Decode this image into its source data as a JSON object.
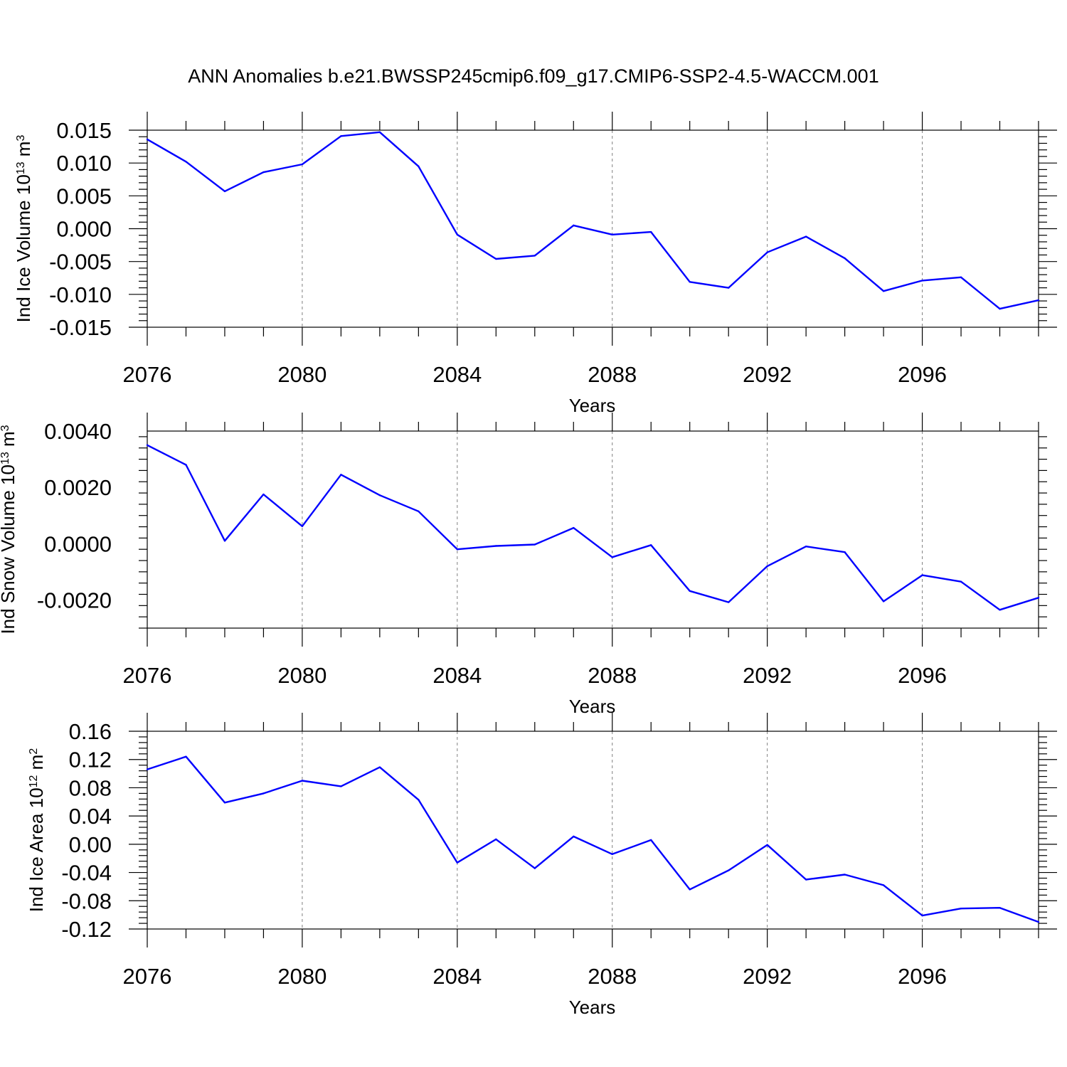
{
  "title": "ANN Anomalies b.e21.BWSSP245cmip6.f09_g17.CMIP6-SSP2-4.5-WACCM.001",
  "colors": {
    "line": "#0000ff",
    "axis": "#000000",
    "grid": "#808080"
  },
  "chart_data": [
    {
      "type": "line",
      "name": "ice-volume",
      "ylabel": {
        "main": "Ind Ice Volume 10",
        "sup": "13",
        "unit": " m",
        "unit_sup": "3"
      },
      "xlabel": "Years",
      "xlim": [
        2076,
        2099
      ],
      "ylim": [
        -0.015,
        0.015
      ],
      "yticks": [
        0.015,
        0.01,
        0.005,
        0.0,
        -0.005,
        -0.01,
        -0.015
      ],
      "ytick_labels": [
        "0.015",
        "0.010",
        "0.005",
        "0.000",
        "-0.005",
        "-0.010",
        "-0.015"
      ],
      "xticks": [
        2076,
        2080,
        2084,
        2088,
        2092,
        2096
      ],
      "xtick_labels": [
        "2076",
        "2080",
        "2084",
        "2088",
        "2092",
        "2096"
      ],
      "grid": "vertical-dashed",
      "x": [
        2076,
        2077,
        2078,
        2079,
        2080,
        2081,
        2082,
        2083,
        2084,
        2085,
        2086,
        2087,
        2088,
        2089,
        2090,
        2091,
        2092,
        2093,
        2094,
        2095,
        2096,
        2097,
        2098,
        2099
      ],
      "y": [
        0.0136,
        0.0102,
        0.0057,
        0.0086,
        0.0098,
        0.0141,
        0.0147,
        0.0095,
        -0.0009,
        -0.0046,
        -0.0041,
        0.0005,
        -0.0009,
        -0.0005,
        -0.0081,
        -0.009,
        -0.0036,
        -0.0012,
        -0.0045,
        -0.0095,
        -0.0079,
        -0.0074,
        -0.0122,
        -0.0109
      ]
    },
    {
      "type": "line",
      "name": "snow-volume",
      "ylabel": {
        "main": "Ind Snow Volume 10",
        "sup": "13",
        "unit": " m",
        "unit_sup": "3"
      },
      "xlabel": "Years",
      "xlim": [
        2076,
        2099
      ],
      "ylim": [
        -0.003,
        0.004
      ],
      "yticks": [
        0.004,
        0.002,
        0.0,
        -0.002
      ],
      "ytick_labels": [
        "0.0040",
        "0.0020",
        "0.0000",
        "-0.0020"
      ],
      "xticks": [
        2076,
        2080,
        2084,
        2088,
        2092,
        2096
      ],
      "xtick_labels": [
        "2076",
        "2080",
        "2084",
        "2088",
        "2092",
        "2096"
      ],
      "grid": "vertical-dashed",
      "x": [
        2076,
        2077,
        2078,
        2079,
        2080,
        2081,
        2082,
        2083,
        2084,
        2085,
        2086,
        2087,
        2088,
        2089,
        2090,
        2091,
        2092,
        2093,
        2094,
        2095,
        2096,
        2097,
        2098,
        2099
      ],
      "y": [
        0.0035,
        0.0028,
        0.0001,
        0.00175,
        0.00062,
        0.00245,
        0.00172,
        0.00115,
        -0.0002,
        -8e-05,
        -3e-05,
        0.00056,
        -0.00048,
        -5e-05,
        -0.00168,
        -0.00208,
        -0.0008,
        -0.0001,
        -0.0003,
        -0.00205,
        -0.00112,
        -0.00135,
        -0.00235,
        -0.00192
      ]
    },
    {
      "type": "line",
      "name": "ice-area",
      "ylabel": {
        "main": "Ind Ice Area 10",
        "sup": "12",
        "unit": " m",
        "unit_sup": "2"
      },
      "xlabel": "Years",
      "xlim": [
        2076,
        2099
      ],
      "ylim": [
        -0.12,
        0.16
      ],
      "yticks": [
        0.16,
        0.12,
        0.08,
        0.04,
        0.0,
        -0.04,
        -0.08,
        -0.12
      ],
      "ytick_labels": [
        "0.16",
        "0.12",
        "0.08",
        "0.04",
        "0.00",
        "-0.04",
        "-0.08",
        "-0.12"
      ],
      "xticks": [
        2076,
        2080,
        2084,
        2088,
        2092,
        2096
      ],
      "xtick_labels": [
        "2076",
        "2080",
        "2084",
        "2088",
        "2092",
        "2096"
      ],
      "grid": "vertical-dashed",
      "x": [
        2076,
        2077,
        2078,
        2079,
        2080,
        2081,
        2082,
        2083,
        2084,
        2085,
        2086,
        2087,
        2088,
        2089,
        2090,
        2091,
        2092,
        2093,
        2094,
        2095,
        2096,
        2097,
        2098,
        2099
      ],
      "y": [
        0.106,
        0.124,
        0.059,
        0.072,
        0.09,
        0.082,
        0.109,
        0.063,
        -0.026,
        0.007,
        -0.034,
        0.011,
        -0.014,
        0.006,
        -0.064,
        -0.037,
        -0.001,
        -0.05,
        -0.043,
        -0.058,
        -0.101,
        -0.091,
        -0.09,
        -0.11
      ]
    }
  ]
}
